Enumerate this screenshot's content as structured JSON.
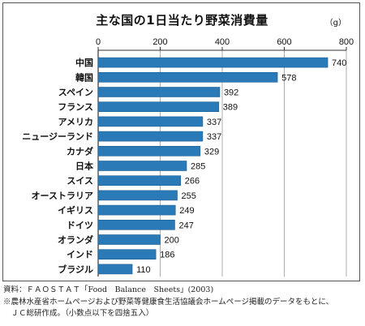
{
  "chart_data": {
    "type": "bar",
    "orientation": "horizontal",
    "title": "主な国の1日当たり野菜消費量",
    "unit": "（g）",
    "xlim": [
      0,
      800
    ],
    "xticks": [
      "0",
      "200",
      "400",
      "600",
      "800"
    ],
    "grid": true,
    "bar_color": "#2a7ab8",
    "categories": [
      "中国",
      "韓国",
      "スペイン",
      "フランス",
      "アメリカ",
      "ニュージーランド",
      "カナダ",
      "日本",
      "スイス",
      "オーストラリア",
      "イギリス",
      "ドイツ",
      "オランダ",
      "インド",
      "ブラジル"
    ],
    "values": [
      740,
      578,
      392,
      389,
      337,
      337,
      329,
      285,
      266,
      255,
      249,
      247,
      200,
      186,
      110
    ],
    "value_labels": [
      "740",
      "578",
      "392",
      "389",
      "337",
      "337",
      "329",
      "285",
      "266",
      "255",
      "249",
      "247",
      "200",
      "186",
      "110"
    ]
  },
  "notes": [
    "資料：ＦＡＯＳＴＡＴ「Food　Balance　Sheets」(2003)",
    "※農林水産省ホームページおよび野菜等健康食生活協議会ホームページ掲載のデータをもとに、",
    "　ＪＣ総研作成。（小数点以下を四捨五入）"
  ]
}
